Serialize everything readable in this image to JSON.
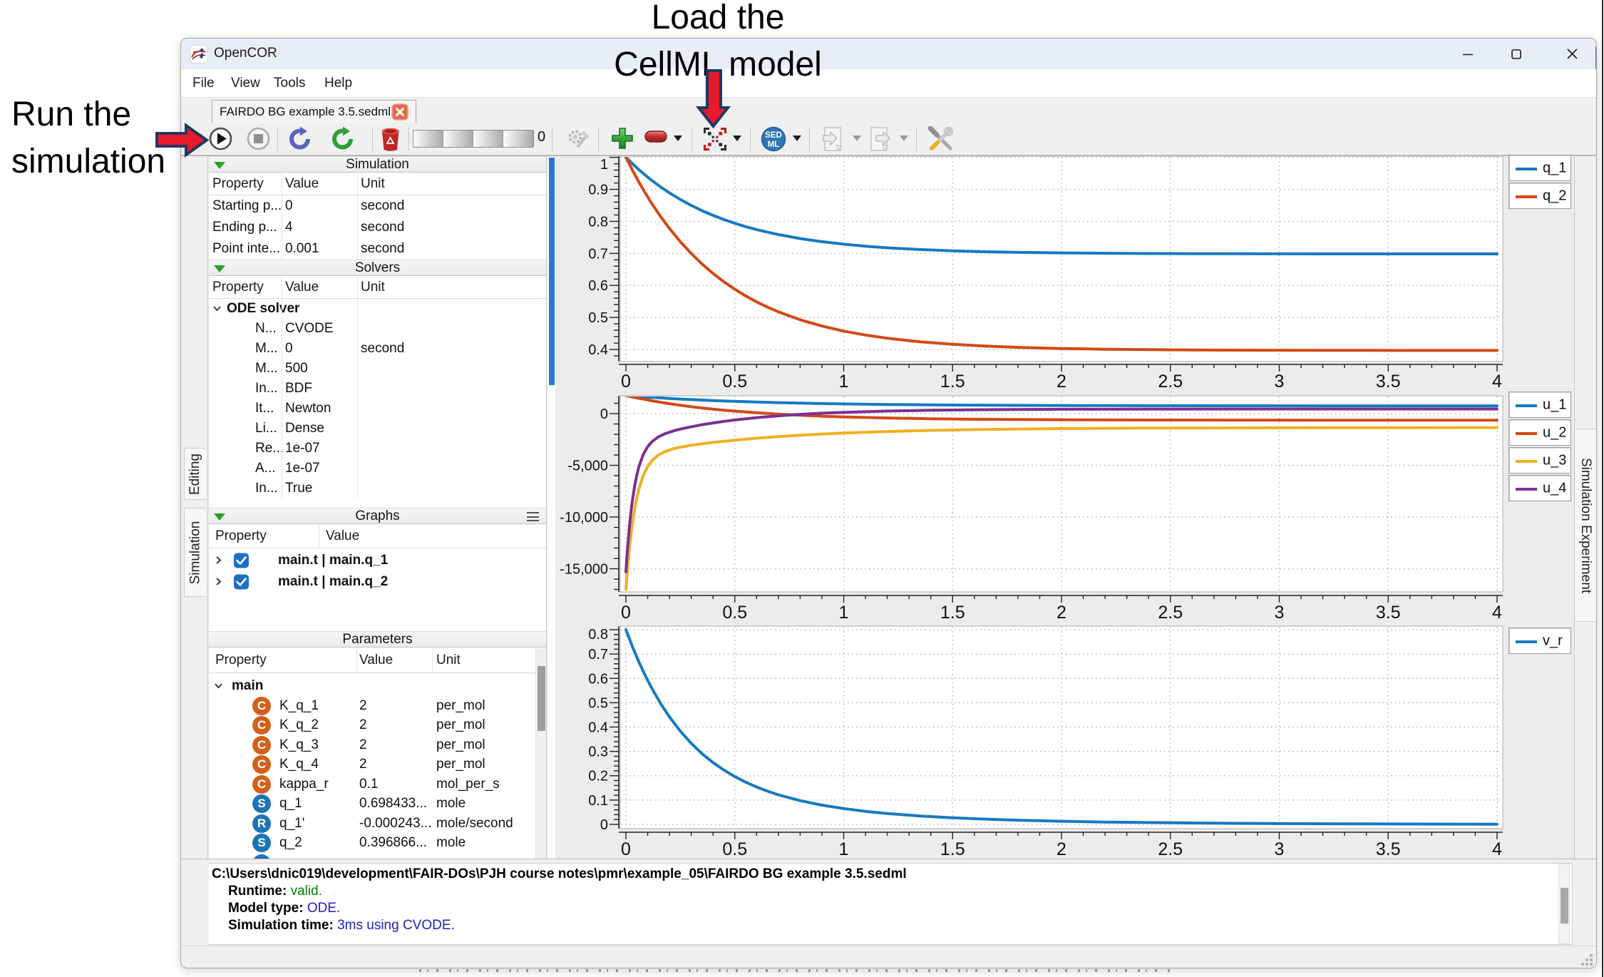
{
  "annotations": {
    "load_line1": "Load the",
    "load_line2": "CellML model",
    "run_line1": "Run the",
    "run_line2": "simulation",
    "arrow_fill": "#e9192d",
    "arrow_outline": "#203864"
  },
  "window": {
    "title": "OpenCOR",
    "menu": [
      "File",
      "View",
      "Tools",
      "Help"
    ],
    "tab_label": "FAIRDO BG example 3.5.sedml"
  },
  "toolbar": {
    "progress_value": "0",
    "sedml_line1": "SED",
    "sedml_line2": "ML"
  },
  "left_tabs": [
    "Editing",
    "Simulation"
  ],
  "right_tabs": [
    "Simulation Experiment"
  ],
  "panels": {
    "simulation": {
      "title": "Simulation",
      "columns": [
        "Property",
        "Value",
        "Unit"
      ],
      "rows": [
        {
          "p": "Starting p...",
          "v": "0",
          "u": "second"
        },
        {
          "p": "Ending p...",
          "v": "4",
          "u": "second"
        },
        {
          "p": "Point inte...",
          "v": "0.001",
          "u": "second"
        }
      ]
    },
    "solvers": {
      "title": "Solvers",
      "columns": [
        "Property",
        "Value",
        "Unit"
      ],
      "group": "ODE solver",
      "rows": [
        {
          "p": "N...",
          "v": "CVODE",
          "u": ""
        },
        {
          "p": "M...",
          "v": "0",
          "u": "second"
        },
        {
          "p": "M...",
          "v": "500",
          "u": ""
        },
        {
          "p": "In...",
          "v": "BDF",
          "u": ""
        },
        {
          "p": "It...",
          "v": "Newton",
          "u": ""
        },
        {
          "p": "Li...",
          "v": "Dense",
          "u": ""
        },
        {
          "p": "Re...",
          "v": "1e-07",
          "u": ""
        },
        {
          "p": "A...",
          "v": "1e-07",
          "u": ""
        },
        {
          "p": "In...",
          "v": "True",
          "u": ""
        }
      ]
    },
    "graphs": {
      "title": "Graphs",
      "columns": [
        "Property",
        "Value"
      ],
      "rows": [
        {
          "label": "main.t | main.q_1",
          "checked": true
        },
        {
          "label": "main.t | main.q_2",
          "checked": true
        }
      ]
    },
    "parameters": {
      "title": "Parameters",
      "columns": [
        "Property",
        "Value",
        "Unit"
      ],
      "group": "main",
      "rows": [
        {
          "icon": "C",
          "icon_color": "#d2601a",
          "p": "K_q_1",
          "v": "2",
          "u": "per_mol"
        },
        {
          "icon": "C",
          "icon_color": "#d2601a",
          "p": "K_q_2",
          "v": "2",
          "u": "per_mol"
        },
        {
          "icon": "C",
          "icon_color": "#d2601a",
          "p": "K_q_3",
          "v": "2",
          "u": "per_mol"
        },
        {
          "icon": "C",
          "icon_color": "#d2601a",
          "p": "K_q_4",
          "v": "2",
          "u": "per_mol"
        },
        {
          "icon": "C",
          "icon_color": "#d2601a",
          "p": "kappa_r",
          "v": "0.1",
          "u": "mol_per_s"
        },
        {
          "icon": "S",
          "icon_color": "#1d74b5",
          "p": "q_1",
          "v": "0.698433...",
          "u": "mole"
        },
        {
          "icon": "R",
          "icon_color": "#1d74b5",
          "p": "q_1'",
          "v": "-0.000243...",
          "u": "mole/second"
        },
        {
          "icon": "S",
          "icon_color": "#1d74b5",
          "p": "q_2",
          "v": "0.396866...",
          "u": "mole"
        }
      ]
    }
  },
  "console": {
    "path": "C:\\Users\\dnic019\\development\\FAIR-DOs\\PJH course notes\\pmr\\example_05\\FAIRDO BG example 3.5.sedml",
    "lines": [
      {
        "label": "Runtime:",
        "value": "valid.",
        "color": "#008000"
      },
      {
        "label": "Model type:",
        "value": "ODE.",
        "color": "#2020bf"
      },
      {
        "label": "Simulation time:",
        "value": "3ms using CVODE.",
        "color": "#2020bf"
      }
    ]
  },
  "chart_data": [
    {
      "type": "line",
      "title": "",
      "xlabel": "",
      "ylabel": "",
      "xlim": [
        -0.0262,
        4.0262
      ],
      "ylim": [
        0.3622,
        1.0036
      ],
      "x_tick_values": [
        0,
        0.5,
        1,
        1.5,
        2,
        2.5,
        3,
        3.5,
        4
      ],
      "x_tick_labels": [
        "0",
        "0.5",
        "1",
        "1.5",
        "2",
        "2.5",
        "3",
        "3.5",
        "4"
      ],
      "x_minor_step": 0.1,
      "y_tick_values": [
        1,
        0.9,
        0.8,
        0.7,
        0.6,
        0.5,
        0.4
      ],
      "y_tick_labels": [
        "1",
        "0.9",
        "0.8",
        "0.7",
        "0.6",
        "0.5",
        "0.4"
      ],
      "y_minor_step": 0.02,
      "grid": true,
      "legend_position": "right",
      "series": [
        {
          "name": "q_1",
          "color": "#1779c1",
          "x": [
            0,
            0.03,
            0.06,
            0.09,
            0.12,
            0.16,
            0.2,
            0.25,
            0.3,
            0.35,
            0.4,
            0.45,
            0.5,
            0.55,
            0.6,
            0.65,
            0.7,
            0.8,
            0.9,
            1.0,
            1.1,
            1.2,
            1.35,
            1.5,
            1.65,
            1.8,
            2.0,
            2.2,
            2.4,
            2.6,
            2.8,
            3.0,
            3.2,
            3.4,
            3.6,
            3.8,
            4.0
          ],
          "y": [
            1.0,
            0.9799,
            0.9611,
            0.9436,
            0.9273,
            0.9072,
            0.8889,
            0.8682,
            0.8497,
            0.8333,
            0.8187,
            0.8056,
            0.794,
            0.7836,
            0.7744,
            0.7661,
            0.7588,
            0.7464,
            0.7365,
            0.7287,
            0.7225,
            0.7175,
            0.712,
            0.708,
            0.7052,
            0.7032,
            0.7015,
            0.7004,
            0.6996,
            0.6992,
            0.6989,
            0.6987,
            0.6986,
            0.6986,
            0.6985,
            0.6985,
            0.6985
          ]
        },
        {
          "name": "q_2",
          "color": "#d24a14",
          "x": [
            0,
            0.03,
            0.06,
            0.09,
            0.12,
            0.16,
            0.2,
            0.25,
            0.3,
            0.35,
            0.4,
            0.45,
            0.5,
            0.55,
            0.6,
            0.65,
            0.7,
            0.8,
            0.9,
            1.0,
            1.1,
            1.2,
            1.35,
            1.5,
            1.65,
            1.8,
            2.0,
            2.2,
            2.4,
            2.6,
            2.8,
            3.0,
            3.2,
            3.4,
            3.6,
            3.8,
            4.0
          ],
          "y": [
            1.0,
            0.9598,
            0.9223,
            0.8873,
            0.8546,
            0.8144,
            0.7777,
            0.7363,
            0.6995,
            0.6666,
            0.6373,
            0.6112,
            0.588,
            0.5672,
            0.5487,
            0.5322,
            0.5175,
            0.4927,
            0.4731,
            0.4574,
            0.445,
            0.4351,
            0.4239,
            0.416,
            0.4105,
            0.4065,
            0.4029,
            0.4007,
            0.3993,
            0.3984,
            0.3978,
            0.3975,
            0.3973,
            0.3971,
            0.397,
            0.397,
            0.3969
          ]
        }
      ]
    },
    {
      "type": "line",
      "title": "",
      "xlabel": "",
      "ylabel": "",
      "xlim": [
        -0.0262,
        4.0262
      ],
      "ylim": [
        -17241,
        1724
      ],
      "x_tick_values": [
        0,
        0.5,
        1,
        1.5,
        2,
        2.5,
        3,
        3.5,
        4
      ],
      "x_tick_labels": [
        "0",
        "0.5",
        "1",
        "1.5",
        "2",
        "2.5",
        "3",
        "3.5",
        "4"
      ],
      "x_minor_step": 0.1,
      "y_tick_values": [
        0,
        -5000,
        -10000,
        -15000
      ],
      "y_tick_labels": [
        "0",
        "-5,000",
        "-10,000",
        "-15,000"
      ],
      "y_minor_step": 1000,
      "grid": true,
      "legend_position": "right",
      "series": [
        {
          "name": "u_1",
          "color": "#1779c1",
          "x": [
            0,
            0.002,
            0.005,
            0.008,
            0.012,
            0.016,
            0.02,
            0.025,
            0.03,
            0.04,
            0.05,
            0.06,
            0.08,
            0.1,
            0.12,
            0.15,
            0.18,
            0.22,
            0.26,
            0.3,
            0.35,
            0.4,
            0.45,
            0.5,
            0.6,
            0.7,
            0.8,
            0.9,
            1.0,
            1.2,
            1.4,
            1.6,
            1.8,
            2.0,
            2.4,
            2.8,
            3.2,
            3.6,
            4.0
          ],
          "y": [
            1750,
            1747,
            1742,
            1737,
            1730,
            1724,
            1717,
            1709,
            1701,
            1686,
            1670,
            1655,
            1625,
            1596,
            1569,
            1529,
            1491,
            1443,
            1398,
            1357,
            1308,
            1263,
            1222,
            1185,
            1118,
            1061,
            1014,
            973,
            939,
            885,
            847,
            819,
            800,
            786,
            768,
            759,
            755,
            752,
            751
          ]
        },
        {
          "name": "u_2",
          "color": "#d24a14",
          "x": [
            0,
            0.002,
            0.005,
            0.008,
            0.012,
            0.016,
            0.02,
            0.025,
            0.03,
            0.04,
            0.05,
            0.06,
            0.08,
            0.1,
            0.12,
            0.15,
            0.18,
            0.22,
            0.26,
            0.3,
            0.35,
            0.4,
            0.45,
            0.5,
            0.6,
            0.7,
            0.8,
            0.9,
            1.0,
            1.2,
            1.4,
            1.6,
            1.8,
            2.0,
            2.4,
            2.8,
            3.2,
            3.6,
            4.0
          ],
          "y": [
            1750,
            1740,
            1726,
            1712,
            1693,
            1675,
            1656,
            1633,
            1611,
            1566,
            1523,
            1480,
            1397,
            1317,
            1240,
            1131,
            1027,
            899,
            781,
            672,
            547,
            434,
            332,
            239,
            80,
            -51,
            -157,
            -245,
            -317,
            -423,
            -495,
            -543,
            -575,
            -596,
            -620,
            -631,
            -636,
            -638,
            -639
          ]
        },
        {
          "name": "u_3",
          "color": "#eeb022",
          "x": [
            0,
            0.002,
            0.005,
            0.008,
            0.012,
            0.016,
            0.02,
            0.025,
            0.03,
            0.04,
            0.05,
            0.06,
            0.08,
            0.1,
            0.12,
            0.15,
            0.18,
            0.22,
            0.26,
            0.3,
            0.35,
            0.4,
            0.45,
            0.5,
            0.6,
            0.7,
            0.8,
            0.9,
            1.0,
            1.2,
            1.4,
            1.6,
            1.8,
            2.0,
            2.4,
            2.8,
            3.2,
            3.6,
            4.0
          ],
          "y": [
            -17000,
            -16432,
            -15625,
            -14870,
            -13937,
            -13081,
            -12297,
            -11408,
            -10611,
            -9252,
            -8156,
            -7271,
            -5972,
            -5113,
            -4535,
            -3989,
            -3660,
            -3387,
            -3205,
            -3065,
            -2918,
            -2789,
            -2673,
            -2567,
            -2380,
            -2222,
            -2088,
            -1975,
            -1879,
            -1729,
            -1622,
            -1545,
            -1489,
            -1450,
            -1401,
            -1376,
            -1364,
            -1357,
            -1354
          ]
        },
        {
          "name": "u_4",
          "color": "#7c2f92",
          "x": [
            0,
            0.002,
            0.005,
            0.008,
            0.012,
            0.016,
            0.02,
            0.025,
            0.03,
            0.04,
            0.05,
            0.06,
            0.08,
            0.1,
            0.12,
            0.15,
            0.18,
            0.22,
            0.26,
            0.3,
            0.35,
            0.4,
            0.45,
            0.5,
            0.6,
            0.7,
            0.8,
            0.9,
            1.0,
            1.2,
            1.4,
            1.6,
            1.8,
            2.0,
            2.4,
            2.8,
            3.2,
            3.6,
            4.0
          ],
          "y": [
            -15300,
            -14655,
            -13748,
            -12908,
            -11884,
            -10960,
            -10124,
            -9193,
            -8371,
            -7008,
            -5943,
            -5110,
            -3935,
            -3190,
            -2701,
            -2235,
            -1937,
            -1660,
            -1448,
            -1268,
            -1072,
            -901,
            -749,
            -614,
            -389,
            -211,
            -71,
            39,
            126,
            249,
            325,
            372,
            402,
            420,
            438,
            446,
            448,
            449,
            450
          ]
        }
      ]
    },
    {
      "type": "line",
      "title": "",
      "xlabel": "",
      "ylabel": "",
      "xlim": [
        -0.0262,
        4.0262
      ],
      "ylim": [
        -0.0176,
        0.8147
      ],
      "x_tick_values": [
        0,
        0.5,
        1,
        1.5,
        2,
        2.5,
        3,
        3.5,
        4
      ],
      "x_tick_labels": [
        "0",
        "0.5",
        "1",
        "1.5",
        "2",
        "2.5",
        "3",
        "3.5",
        "4"
      ],
      "x_minor_step": 0.1,
      "y_tick_values": [
        0.8,
        0.7,
        0.6,
        0.5,
        0.4,
        0.3,
        0.2,
        0.1,
        0
      ],
      "y_tick_labels": [
        "0.8",
        "0.7",
        "0.6",
        "0.5",
        "0.4",
        "0.3",
        "0.2",
        "0.1",
        "0"
      ],
      "y_minor_step": 0.02,
      "grid": true,
      "legend_position": "right",
      "series": [
        {
          "name": "v_r",
          "color": "#1779c1",
          "x": [
            0,
            0.03,
            0.06,
            0.09,
            0.12,
            0.16,
            0.2,
            0.25,
            0.3,
            0.35,
            0.4,
            0.45,
            0.5,
            0.55,
            0.6,
            0.65,
            0.7,
            0.8,
            0.9,
            1.0,
            1.1,
            1.2,
            1.35,
            1.5,
            1.65,
            1.8,
            2.0,
            2.2,
            2.4,
            2.6,
            2.8,
            3.0,
            3.2,
            3.4,
            3.6,
            3.8,
            4.0
          ],
          "y": [
            0.8,
            0.7299,
            0.6666,
            0.6092,
            0.5573,
            0.4955,
            0.4414,
            0.3829,
            0.333,
            0.2905,
            0.2542,
            0.2231,
            0.1964,
            0.1734,
            0.1536,
            0.1365,
            0.1217,
            0.0976,
            0.0791,
            0.0649,
            0.0537,
            0.0449,
            0.0347,
            0.0273,
            0.0217,
            0.0173,
            0.013,
            0.0098,
            0.0075,
            0.0057,
            0.0043,
            0.0033,
            0.0025,
            0.0019,
            0.0015,
            0.0011,
            0.0009
          ]
        }
      ]
    }
  ]
}
